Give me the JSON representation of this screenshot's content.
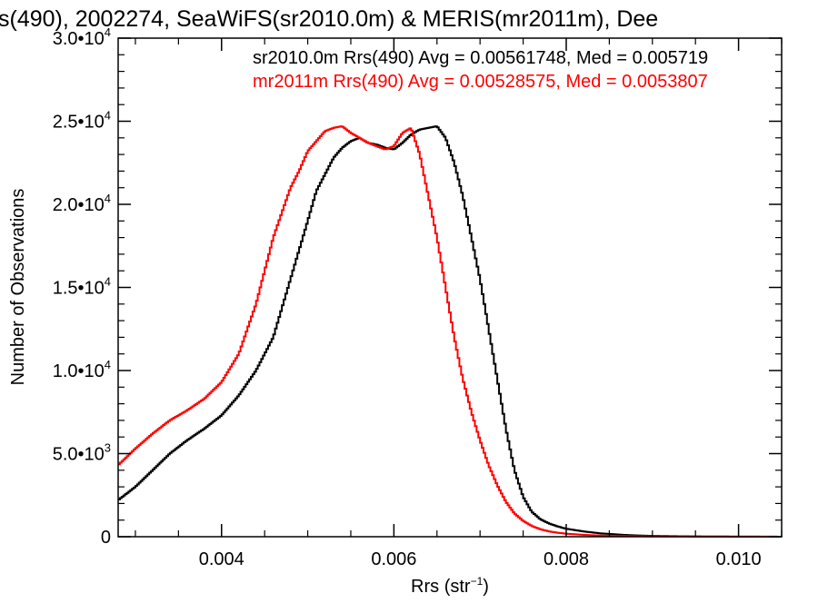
{
  "chart_data": {
    "type": "line",
    "title": "s(490), 2002274, SeaWiFS(sr2010.0m) & MERIS(mr2011m), Dee",
    "xlabel": "Rrs (str",
    "xlabel_sup": "−1",
    "xlabel_close": ")",
    "ylabel": "Number of Observations",
    "xlim": [
      0.0028,
      0.0105
    ],
    "ylim": [
      0,
      30000
    ],
    "xticks": [
      {
        "value": 0.004,
        "label": "0.004"
      },
      {
        "value": 0.006,
        "label": "0.006"
      },
      {
        "value": 0.008,
        "label": "0.008"
      },
      {
        "value": 0.01,
        "label": "0.010"
      }
    ],
    "yticks": [
      {
        "value": 0,
        "mant": "0",
        "exp": ""
      },
      {
        "value": 5000,
        "mant": "5.0•10",
        "exp": "3"
      },
      {
        "value": 10000,
        "mant": "1.0•10",
        "exp": "4"
      },
      {
        "value": 15000,
        "mant": "1.5•10",
        "exp": "4"
      },
      {
        "value": 20000,
        "mant": "2.0•10",
        "exp": "4"
      },
      {
        "value": 25000,
        "mant": "2.5•10",
        "exp": "4"
      },
      {
        "value": 30000,
        "mant": "3.0•10",
        "exp": "4"
      }
    ],
    "legend": [
      {
        "text": "sr2010.0m Rrs(490) Avg = 0.00561748, Med = 0.005719",
        "color": "#000000"
      },
      {
        "text": "mr2011m Rrs(490) Avg = 0.00528575, Med = 0.0053807",
        "color": "#ff0000"
      }
    ],
    "legend_placement": "top",
    "grid": false,
    "series": [
      {
        "color": "#000000",
        "points": [
          [
            0.0028,
            2200
          ],
          [
            0.003,
            3000
          ],
          [
            0.0032,
            4000
          ],
          [
            0.0034,
            5000
          ],
          [
            0.0036,
            5800
          ],
          [
            0.0038,
            6500
          ],
          [
            0.004,
            7300
          ],
          [
            0.0042,
            8500
          ],
          [
            0.0044,
            10000
          ],
          [
            0.0046,
            12000
          ],
          [
            0.0048,
            15500
          ],
          [
            0.005,
            19000
          ],
          [
            0.0051,
            20800
          ],
          [
            0.0052,
            21800
          ],
          [
            0.0053,
            22800
          ],
          [
            0.0054,
            23400
          ],
          [
            0.0055,
            23800
          ],
          [
            0.0056,
            24000
          ],
          [
            0.0057,
            23700
          ],
          [
            0.0058,
            23600
          ],
          [
            0.0059,
            23400
          ],
          [
            0.006,
            23300
          ],
          [
            0.0061,
            23700
          ],
          [
            0.0062,
            24200
          ],
          [
            0.0063,
            24500
          ],
          [
            0.0064,
            24600
          ],
          [
            0.0065,
            24700
          ],
          [
            0.0066,
            24000
          ],
          [
            0.0067,
            22500
          ],
          [
            0.0068,
            20500
          ],
          [
            0.0069,
            18000
          ],
          [
            0.007,
            15500
          ],
          [
            0.0071,
            12500
          ],
          [
            0.0072,
            9500
          ],
          [
            0.0073,
            6500
          ],
          [
            0.0074,
            4000
          ],
          [
            0.0075,
            2400
          ],
          [
            0.0076,
            1500
          ],
          [
            0.0077,
            1050
          ],
          [
            0.0078,
            800
          ],
          [
            0.0079,
            620
          ],
          [
            0.008,
            480
          ],
          [
            0.0082,
            320
          ],
          [
            0.0084,
            200
          ],
          [
            0.0086,
            130
          ],
          [
            0.0088,
            80
          ],
          [
            0.009,
            50
          ],
          [
            0.0093,
            30
          ],
          [
            0.0096,
            15
          ],
          [
            0.01,
            8
          ],
          [
            0.0105,
            3
          ]
        ]
      },
      {
        "color": "#ff0000",
        "points": [
          [
            0.0028,
            4300
          ],
          [
            0.003,
            5300
          ],
          [
            0.0032,
            6200
          ],
          [
            0.0034,
            7000
          ],
          [
            0.0036,
            7600
          ],
          [
            0.0038,
            8300
          ],
          [
            0.004,
            9300
          ],
          [
            0.0042,
            11000
          ],
          [
            0.0044,
            14000
          ],
          [
            0.0046,
            18000
          ],
          [
            0.0048,
            21000
          ],
          [
            0.0049,
            22000
          ],
          [
            0.005,
            23200
          ],
          [
            0.0051,
            23800
          ],
          [
            0.0052,
            24400
          ],
          [
            0.0053,
            24600
          ],
          [
            0.0054,
            24700
          ],
          [
            0.0055,
            24300
          ],
          [
            0.0056,
            24000
          ],
          [
            0.0057,
            23700
          ],
          [
            0.0058,
            23500
          ],
          [
            0.0059,
            23300
          ],
          [
            0.006,
            23500
          ],
          [
            0.0061,
            24300
          ],
          [
            0.0062,
            24600
          ],
          [
            0.0063,
            23000
          ],
          [
            0.0064,
            20500
          ],
          [
            0.0065,
            18000
          ],
          [
            0.0066,
            15000
          ],
          [
            0.0067,
            12000
          ],
          [
            0.0068,
            9500
          ],
          [
            0.0069,
            7500
          ],
          [
            0.007,
            5800
          ],
          [
            0.0071,
            4300
          ],
          [
            0.0072,
            3100
          ],
          [
            0.0073,
            2100
          ],
          [
            0.0074,
            1400
          ],
          [
            0.0075,
            950
          ],
          [
            0.0076,
            650
          ],
          [
            0.0077,
            450
          ],
          [
            0.0078,
            320
          ],
          [
            0.0079,
            240
          ],
          [
            0.008,
            180
          ],
          [
            0.0082,
            110
          ],
          [
            0.0084,
            70
          ],
          [
            0.0086,
            45
          ],
          [
            0.0088,
            30
          ],
          [
            0.009,
            20
          ],
          [
            0.0093,
            12
          ],
          [
            0.0096,
            8
          ],
          [
            0.01,
            5
          ],
          [
            0.0105,
            2
          ]
        ]
      }
    ]
  }
}
